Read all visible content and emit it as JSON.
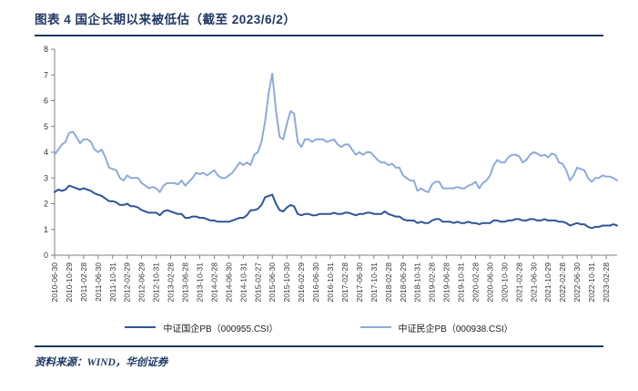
{
  "header": {
    "title": "图表 4  国企长期以来被低估（截至 2023/6/2）"
  },
  "footer": {
    "source": "资料来源：WIND，华创证券"
  },
  "colors": {
    "accent": "#1F3864",
    "soe_line": "#2F5597",
    "private_line": "#8FAADC",
    "axis": "#808080"
  },
  "legend": [
    {
      "label": "中证国企PB（000955.CSI）",
      "color": "#2F5597"
    },
    {
      "label": "中证民企PB（000938.CSI）",
      "color": "#8FAADC"
    }
  ],
  "chart_data": {
    "type": "line",
    "title": "国企长期以来被低估（截至 2023/6/2）",
    "xlabel": "",
    "ylabel": "",
    "ylim": [
      0,
      8
    ],
    "yticks": [
      0,
      1,
      2,
      3,
      4,
      5,
      6,
      7,
      8
    ],
    "grid": false,
    "legend_position": "bottom",
    "x_start": "2010-06",
    "x_freq": "monthly",
    "x_tick_every": 4,
    "x_tick_labels": [
      "2010-06-30",
      "2010-10-29",
      "2011-02-28",
      "2011-06-30",
      "2011-10-31",
      "2012-02-29",
      "2012-06-29",
      "2012-10-31",
      "2013-02-28",
      "2013-06-28",
      "2013-10-31",
      "2014-02-28",
      "2014-06-30",
      "2014-10-31",
      "2015-02-27",
      "2015-06-30",
      "2015-10-30",
      "2016-02-29",
      "2016-06-30",
      "2016-10-31",
      "2017-02-28",
      "2017-06-30",
      "2017-10-31",
      "2018-02-28",
      "2018-06-29",
      "2018-10-31",
      "2019-02-28",
      "2019-06-28",
      "2019-10-31",
      "2020-02-28",
      "2020-06-30",
      "2020-10-30",
      "2021-02-28",
      "2021-06-30",
      "2021-10-29",
      "2022-02-28",
      "2022-06-30",
      "2022-10-31",
      "2023-02-28"
    ],
    "series": [
      {
        "name": "中证国企PB（000955.CSI）",
        "color": "#2F5597",
        "values": [
          2.45,
          2.55,
          2.5,
          2.55,
          2.7,
          2.65,
          2.6,
          2.55,
          2.6,
          2.55,
          2.5,
          2.4,
          2.35,
          2.3,
          2.2,
          2.1,
          2.1,
          2.05,
          1.95,
          1.95,
          2.0,
          1.9,
          1.9,
          1.85,
          1.75,
          1.7,
          1.65,
          1.65,
          1.65,
          1.55,
          1.7,
          1.75,
          1.7,
          1.65,
          1.6,
          1.6,
          1.45,
          1.45,
          1.5,
          1.5,
          1.45,
          1.45,
          1.4,
          1.35,
          1.35,
          1.3,
          1.3,
          1.3,
          1.3,
          1.35,
          1.4,
          1.45,
          1.45,
          1.55,
          1.75,
          1.75,
          1.8,
          1.95,
          2.25,
          2.3,
          2.35,
          2.0,
          1.75,
          1.7,
          1.85,
          1.95,
          1.9,
          1.6,
          1.55,
          1.6,
          1.6,
          1.55,
          1.55,
          1.6,
          1.6,
          1.6,
          1.6,
          1.65,
          1.6,
          1.6,
          1.65,
          1.65,
          1.6,
          1.55,
          1.6,
          1.6,
          1.65,
          1.65,
          1.6,
          1.6,
          1.6,
          1.7,
          1.6,
          1.55,
          1.5,
          1.5,
          1.4,
          1.35,
          1.35,
          1.35,
          1.25,
          1.3,
          1.25,
          1.25,
          1.35,
          1.4,
          1.4,
          1.3,
          1.3,
          1.3,
          1.25,
          1.3,
          1.25,
          1.25,
          1.3,
          1.25,
          1.25,
          1.2,
          1.25,
          1.25,
          1.25,
          1.35,
          1.35,
          1.3,
          1.3,
          1.35,
          1.35,
          1.4,
          1.4,
          1.35,
          1.35,
          1.4,
          1.4,
          1.35,
          1.35,
          1.4,
          1.35,
          1.35,
          1.35,
          1.3,
          1.3,
          1.25,
          1.15,
          1.2,
          1.25,
          1.2,
          1.2,
          1.1,
          1.05,
          1.1,
          1.1,
          1.15,
          1.15,
          1.15,
          1.2,
          1.15
        ]
      },
      {
        "name": "中证民企PB（000938.CSI）",
        "color": "#8FAADC",
        "values": [
          3.9,
          4.1,
          4.3,
          4.4,
          4.75,
          4.8,
          4.6,
          4.35,
          4.5,
          4.5,
          4.4,
          4.1,
          4.0,
          4.1,
          3.8,
          3.4,
          3.35,
          3.3,
          3.0,
          2.9,
          3.1,
          3.0,
          3.0,
          3.0,
          2.8,
          2.7,
          2.6,
          2.65,
          2.6,
          2.45,
          2.7,
          2.8,
          2.8,
          2.8,
          2.75,
          2.9,
          2.7,
          2.85,
          3.0,
          3.2,
          3.15,
          3.2,
          3.1,
          3.2,
          3.3,
          3.1,
          3.0,
          3.0,
          3.1,
          3.2,
          3.4,
          3.6,
          3.5,
          3.6,
          3.5,
          3.9,
          4.0,
          4.4,
          5.2,
          6.3,
          7.05,
          5.6,
          4.6,
          4.5,
          5.1,
          5.6,
          5.5,
          4.4,
          4.2,
          4.5,
          4.5,
          4.4,
          4.5,
          4.5,
          4.5,
          4.4,
          4.45,
          4.5,
          4.3,
          4.2,
          4.3,
          4.3,
          4.1,
          3.9,
          4.0,
          3.9,
          4.0,
          4.0,
          3.85,
          3.7,
          3.6,
          3.6,
          3.5,
          3.55,
          3.4,
          3.4,
          3.1,
          3.0,
          2.9,
          2.9,
          2.5,
          2.6,
          2.5,
          2.45,
          2.75,
          2.85,
          2.85,
          2.6,
          2.6,
          2.6,
          2.6,
          2.65,
          2.6,
          2.6,
          2.7,
          2.75,
          2.85,
          2.6,
          2.8,
          2.9,
          3.1,
          3.5,
          3.7,
          3.6,
          3.6,
          3.8,
          3.9,
          3.9,
          3.85,
          3.6,
          3.7,
          3.9,
          4.0,
          3.95,
          3.85,
          3.9,
          3.8,
          3.95,
          3.9,
          3.6,
          3.55,
          3.3,
          2.9,
          3.1,
          3.4,
          3.35,
          3.3,
          3.0,
          2.85,
          3.0,
          3.0,
          3.1,
          3.05,
          3.05,
          3.0,
          2.9
        ]
      }
    ]
  }
}
